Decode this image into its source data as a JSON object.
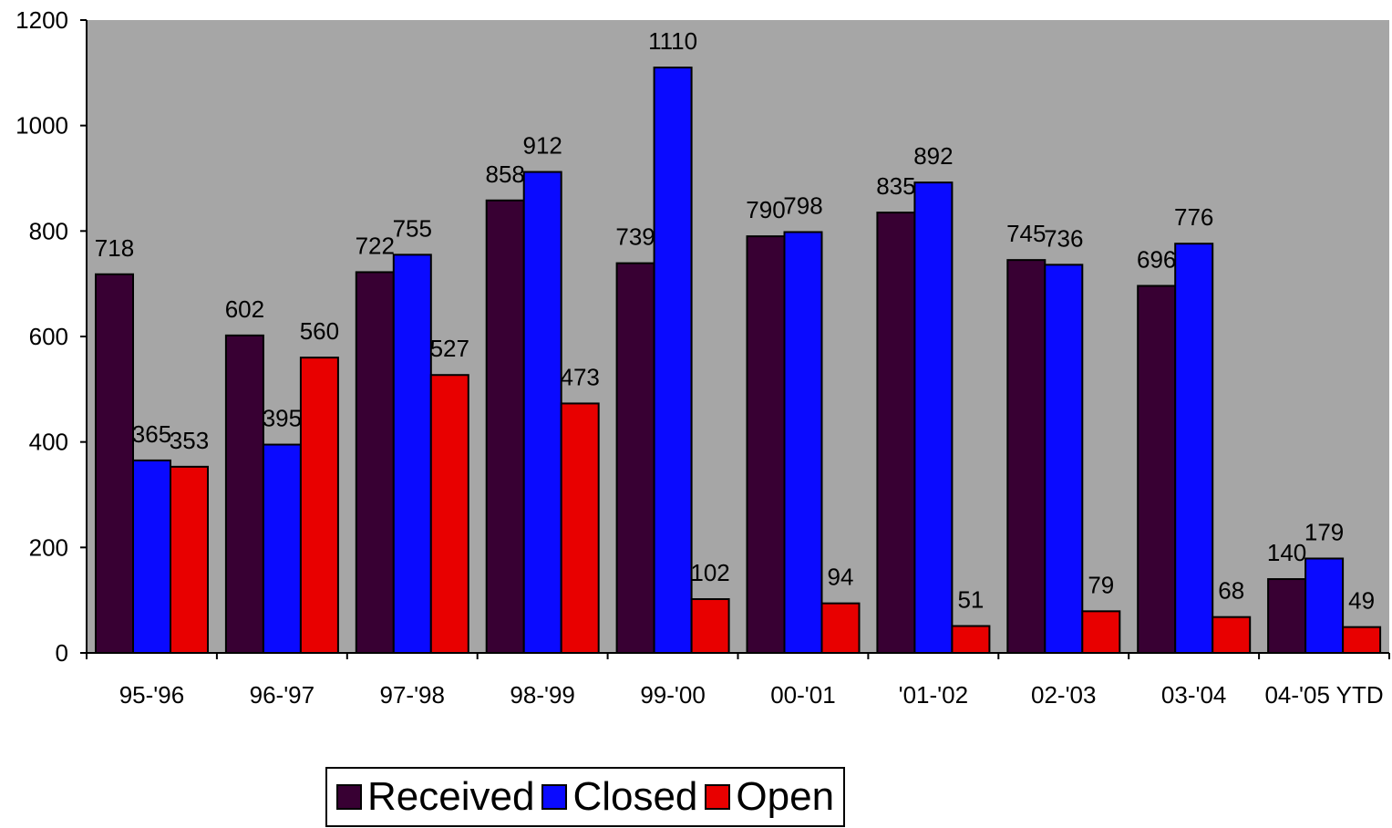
{
  "colors": {
    "plot_background": "#a6a6a6",
    "Received": "#380033",
    "Closed": "#0a0aff",
    "Open": "#e80000"
  },
  "chart_data": {
    "type": "bar",
    "categories": [
      "95-'96",
      "96-'97",
      "97-'98",
      "98-'99",
      "99-'00",
      "00-'01",
      "'01-'02",
      "02-'03",
      "03-'04",
      "04-'05 YTD"
    ],
    "series": [
      {
        "name": "Received",
        "values": [
          718,
          602,
          722,
          858,
          739,
          790,
          835,
          745,
          696,
          140
        ]
      },
      {
        "name": "Closed",
        "values": [
          365,
          395,
          755,
          912,
          1110,
          798,
          892,
          736,
          776,
          179
        ]
      },
      {
        "name": "Open",
        "values": [
          353,
          560,
          527,
          473,
          102,
          94,
          51,
          79,
          68,
          49
        ]
      }
    ],
    "ylim": [
      0,
      1200
    ],
    "yticks": [
      0,
      200,
      400,
      600,
      800,
      1000,
      1200
    ],
    "grid": false,
    "legend_position": "bottom",
    "title": "",
    "xlabel": "",
    "ylabel": ""
  }
}
